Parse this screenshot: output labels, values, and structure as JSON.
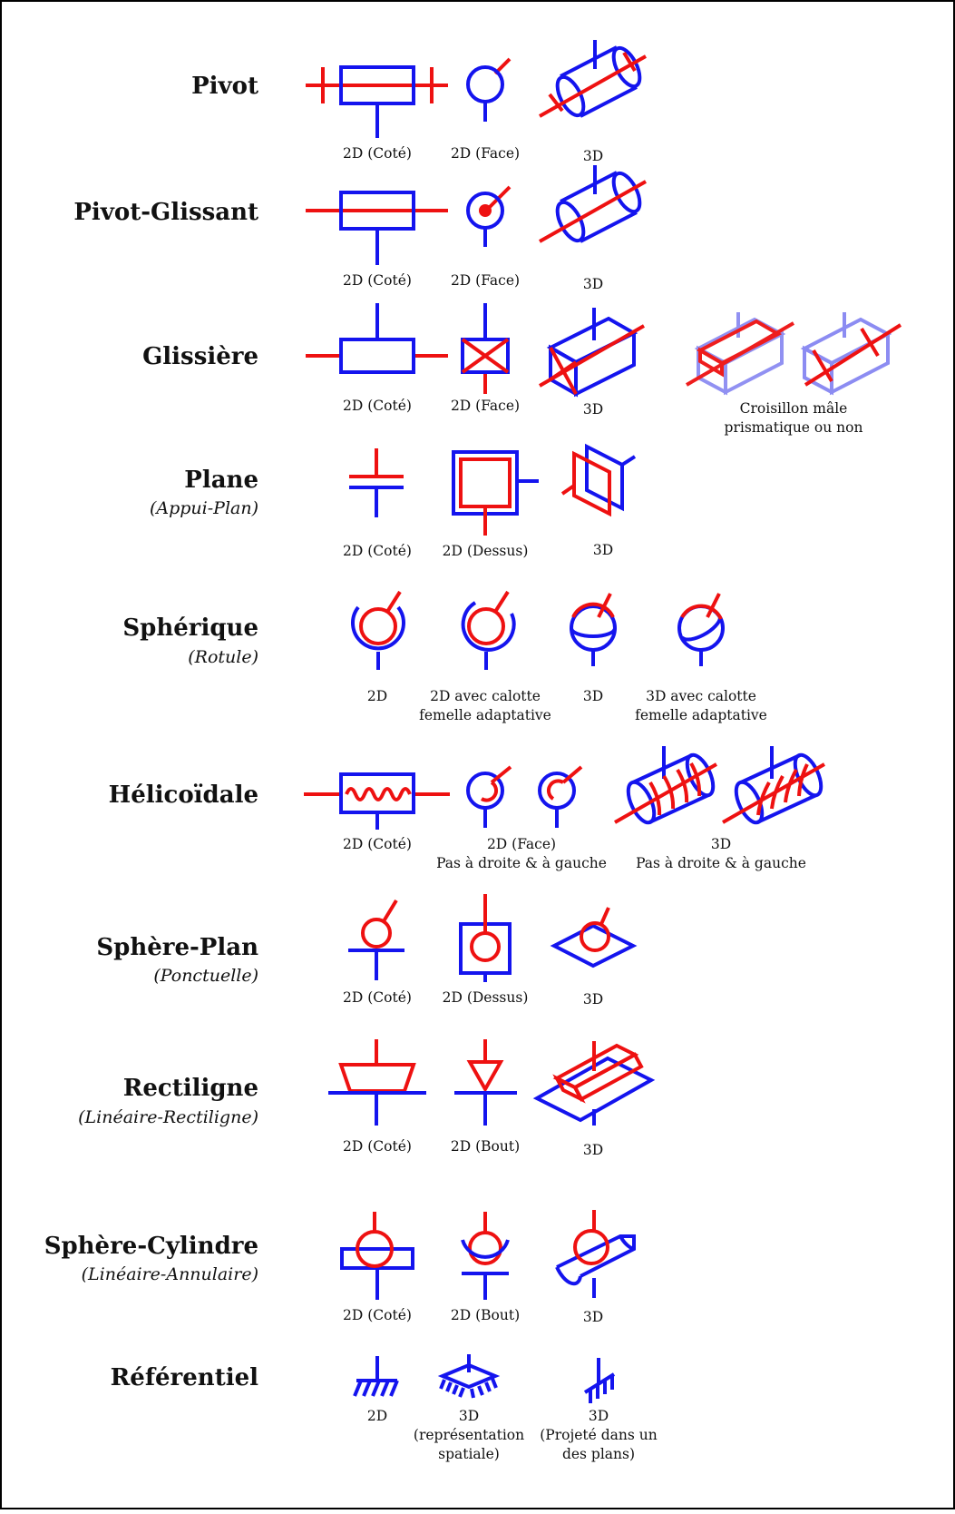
{
  "rows": [
    {
      "title": "Pivot",
      "subtitle": "",
      "captions": [
        [
          "2D (Coté)"
        ],
        [
          "2D (Face)"
        ],
        [
          "3D"
        ]
      ]
    },
    {
      "title": "Pivot-Glissant",
      "subtitle": "",
      "captions": [
        [
          "2D (Coté)"
        ],
        [
          "2D (Face)"
        ],
        [
          "3D"
        ]
      ]
    },
    {
      "title": "Glissière",
      "subtitle": "",
      "captions": [
        [
          "2D (Coté)"
        ],
        [
          "2D (Face)"
        ],
        [
          "3D"
        ],
        [
          "Croisillon mâle",
          "prismatique ou non"
        ]
      ]
    },
    {
      "title": "Plane",
      "subtitle": "(Appui-Plan)",
      "captions": [
        [
          "2D (Coté)"
        ],
        [
          "2D (Dessus)"
        ],
        [
          "3D"
        ]
      ]
    },
    {
      "title": "Sphérique",
      "subtitle": "(Rotule)",
      "captions": [
        [
          "2D"
        ],
        [
          "2D avec calotte",
          "femelle adaptative"
        ],
        [
          "3D"
        ],
        [
          "3D avec calotte",
          "femelle adaptative"
        ]
      ]
    },
    {
      "title": "Hélicoïdale",
      "subtitle": "",
      "captions": [
        [
          "2D (Coté)"
        ],
        [
          "2D (Face)",
          "Pas à droite & à gauche"
        ],
        [
          "3D",
          "Pas à droite & à gauche"
        ]
      ]
    },
    {
      "title": "Sphère-Plan",
      "subtitle": "(Ponctuelle)",
      "captions": [
        [
          "2D (Coté)"
        ],
        [
          "2D (Dessus)"
        ],
        [
          "3D"
        ]
      ]
    },
    {
      "title": "Rectiligne",
      "subtitle": "(Linéaire-Rectiligne)",
      "captions": [
        [
          "2D (Coté)"
        ],
        [
          "2D (Bout)"
        ],
        [
          "3D"
        ]
      ]
    },
    {
      "title": "Sphère-Cylindre",
      "subtitle": "(Linéaire-Annulaire)",
      "captions": [
        [
          "2D (Coté)"
        ],
        [
          "2D (Bout)"
        ],
        [
          "3D"
        ]
      ]
    },
    {
      "title": "Référentiel",
      "subtitle": "",
      "captions": [
        [
          "2D"
        ],
        [
          "3D",
          "(représentation",
          "spatiale)"
        ],
        [
          "3D",
          "(Projeté dans un",
          "des plans)"
        ]
      ]
    }
  ],
  "colors": {
    "solid": "#1414ee",
    "moving": "#ee1111",
    "frame": "#000000"
  },
  "icons": [
    "pivot-symbol",
    "pivot-glissant-symbol",
    "glissiere-symbol",
    "plane-symbol",
    "spherique-symbol",
    "helicoidale-symbol",
    "sphere-plan-symbol",
    "rectiligne-symbol",
    "sphere-cylindre-symbol",
    "referentiel-symbol"
  ]
}
